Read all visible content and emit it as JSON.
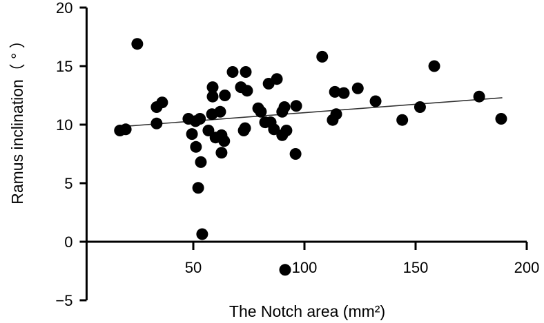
{
  "chart_data": {
    "type": "scatter",
    "title": "",
    "xlabel": "The Notch area (mm²)",
    "ylabel": "Ramus inclination（ ° ）",
    "xlim": [
      2,
      200
    ],
    "ylim": [
      -5,
      20
    ],
    "xticks": [
      50,
      100,
      150,
      200
    ],
    "yticks": [
      -5,
      0,
      5,
      10,
      15,
      20
    ],
    "grid": false,
    "marker_color": "#000000",
    "points": [
      [
        17,
        9.5
      ],
      [
        19.6,
        9.6
      ],
      [
        24.8,
        16.9
      ],
      [
        33.5,
        11.5
      ],
      [
        36,
        11.9
      ],
      [
        33.5,
        10.1
      ],
      [
        47.8,
        10.5
      ],
      [
        49.4,
        9.2
      ],
      [
        51,
        10.3
      ],
      [
        53,
        10.5
      ],
      [
        51.2,
        8.1
      ],
      [
        53.4,
        6.8
      ],
      [
        52.2,
        4.6
      ],
      [
        54,
        0.65
      ],
      [
        56.8,
        9.5
      ],
      [
        58.4,
        10.9
      ],
      [
        58.7,
        12.4
      ],
      [
        58.7,
        13.2
      ],
      [
        60,
        8.9
      ],
      [
        62.7,
        9.1
      ],
      [
        62.1,
        11.1
      ],
      [
        64.2,
        12.5
      ],
      [
        63.9,
        8.6
      ],
      [
        62.7,
        7.6
      ],
      [
        67.7,
        14.5
      ],
      [
        73.6,
        14.5
      ],
      [
        71.4,
        13.2
      ],
      [
        74.2,
        12.9
      ],
      [
        73.3,
        9.7
      ],
      [
        72.7,
        9.5
      ],
      [
        79.2,
        11.4
      ],
      [
        80.4,
        11.1
      ],
      [
        82.3,
        10.2
      ],
      [
        84.8,
        10.2
      ],
      [
        86.3,
        9.6
      ],
      [
        83.9,
        13.5
      ],
      [
        87.6,
        13.9
      ],
      [
        90,
        11.1
      ],
      [
        91,
        11.5
      ],
      [
        90,
        9.1
      ],
      [
        91.9,
        9.5
      ],
      [
        96,
        7.5
      ],
      [
        96.3,
        11.6
      ],
      [
        91.3,
        -2.4
      ],
      [
        108,
        15.8
      ],
      [
        112.7,
        10.4
      ],
      [
        113.7,
        12.8
      ],
      [
        114.3,
        10.9
      ],
      [
        117.7,
        12.7
      ],
      [
        124,
        13.1
      ],
      [
        132,
        12.0
      ],
      [
        144,
        10.4
      ],
      [
        152,
        11.5
      ],
      [
        158.4,
        15.0
      ],
      [
        178.6,
        12.4
      ],
      [
        188.5,
        10.5
      ]
    ],
    "regression_line": {
      "x": [
        15,
        189
      ],
      "y": [
        9.8,
        12.3
      ]
    }
  }
}
